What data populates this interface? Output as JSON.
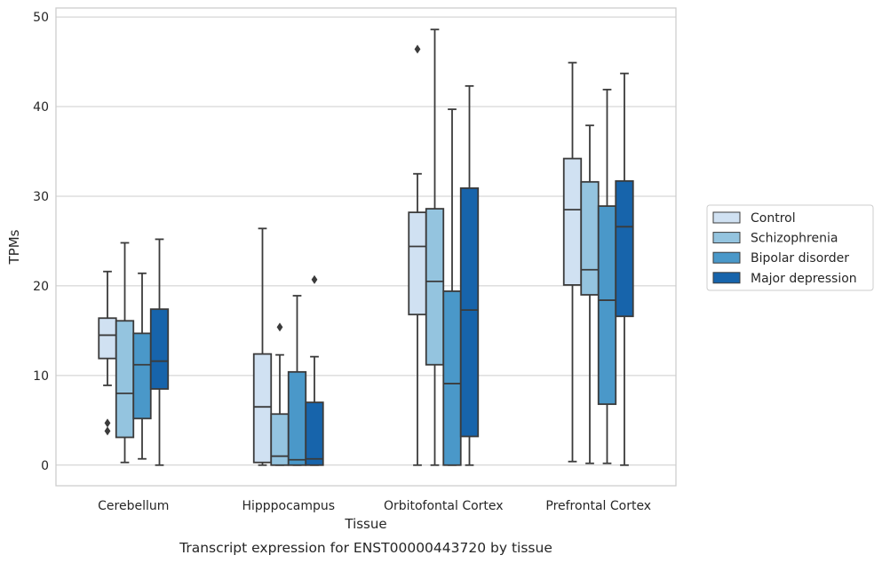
{
  "chart_data": {
    "type": "box",
    "title": "",
    "caption": "Transcript expression for ENST00000443720 by tissue",
    "xlabel": "Tissue",
    "ylabel": "TPMs",
    "ylim": [
      -2.3,
      51
    ],
    "yticks": [
      0,
      10,
      20,
      30,
      40,
      50
    ],
    "grid": "horizontal",
    "legend_position": "center-right",
    "categories": [
      "Cerebellum",
      "Hipppocampus",
      "Orbitofontal Cortex",
      "Prefrontal Cortex"
    ],
    "series": [
      {
        "name": "Control",
        "color": "#d0e1f2",
        "boxes": [
          {
            "whislo": 8.9,
            "q1": 11.9,
            "med": 14.5,
            "q3": 16.4,
            "whishi": 21.6,
            "fliers": [
              4.7,
              3.8
            ]
          },
          {
            "whislo": 0.0,
            "q1": 0.3,
            "med": 6.5,
            "q3": 12.4,
            "whishi": 26.4,
            "fliers": []
          },
          {
            "whislo": 0.0,
            "q1": 16.8,
            "med": 24.4,
            "q3": 28.2,
            "whishi": 32.5,
            "fliers": [
              46.4
            ]
          },
          {
            "whislo": 0.4,
            "q1": 20.1,
            "med": 28.5,
            "q3": 34.2,
            "whishi": 44.9,
            "fliers": []
          }
        ]
      },
      {
        "name": "Schizophrenia",
        "color": "#94c4df",
        "boxes": [
          {
            "whislo": 0.3,
            "q1": 3.1,
            "med": 8.0,
            "q3": 16.1,
            "whishi": 24.8,
            "fliers": []
          },
          {
            "whislo": 0.0,
            "q1": 0.0,
            "med": 1.0,
            "q3": 5.7,
            "whishi": 12.3,
            "fliers": [
              15.4
            ]
          },
          {
            "whislo": 0.0,
            "q1": 11.2,
            "med": 20.5,
            "q3": 28.6,
            "whishi": 48.6,
            "fliers": []
          },
          {
            "whislo": 0.2,
            "q1": 19.0,
            "med": 21.8,
            "q3": 31.6,
            "whishi": 37.9,
            "fliers": []
          }
        ]
      },
      {
        "name": "Bipolar disorder",
        "color": "#4a98c9",
        "boxes": [
          {
            "whislo": 0.7,
            "q1": 5.2,
            "med": 11.2,
            "q3": 14.7,
            "whishi": 21.4,
            "fliers": []
          },
          {
            "whislo": 0.0,
            "q1": 0.0,
            "med": 0.6,
            "q3": 10.4,
            "whishi": 18.9,
            "fliers": []
          },
          {
            "whislo": 0.0,
            "q1": 0.0,
            "med": 9.1,
            "q3": 19.4,
            "whishi": 39.7,
            "fliers": []
          },
          {
            "whislo": 0.2,
            "q1": 6.8,
            "med": 18.4,
            "q3": 28.9,
            "whishi": 41.9,
            "fliers": []
          }
        ]
      },
      {
        "name": "Major depression",
        "color": "#1764ab",
        "boxes": [
          {
            "whislo": 0.0,
            "q1": 8.5,
            "med": 11.6,
            "q3": 17.4,
            "whishi": 25.2,
            "fliers": []
          },
          {
            "whislo": 0.0,
            "q1": 0.0,
            "med": 0.7,
            "q3": 7.0,
            "whishi": 12.1,
            "fliers": [
              20.7
            ]
          },
          {
            "whislo": 0.0,
            "q1": 3.2,
            "med": 17.3,
            "q3": 30.9,
            "whishi": 42.3,
            "fliers": []
          },
          {
            "whislo": 0.0,
            "q1": 16.6,
            "med": 26.6,
            "q3": 31.7,
            "whishi": 43.7,
            "fliers": []
          }
        ]
      }
    ]
  }
}
